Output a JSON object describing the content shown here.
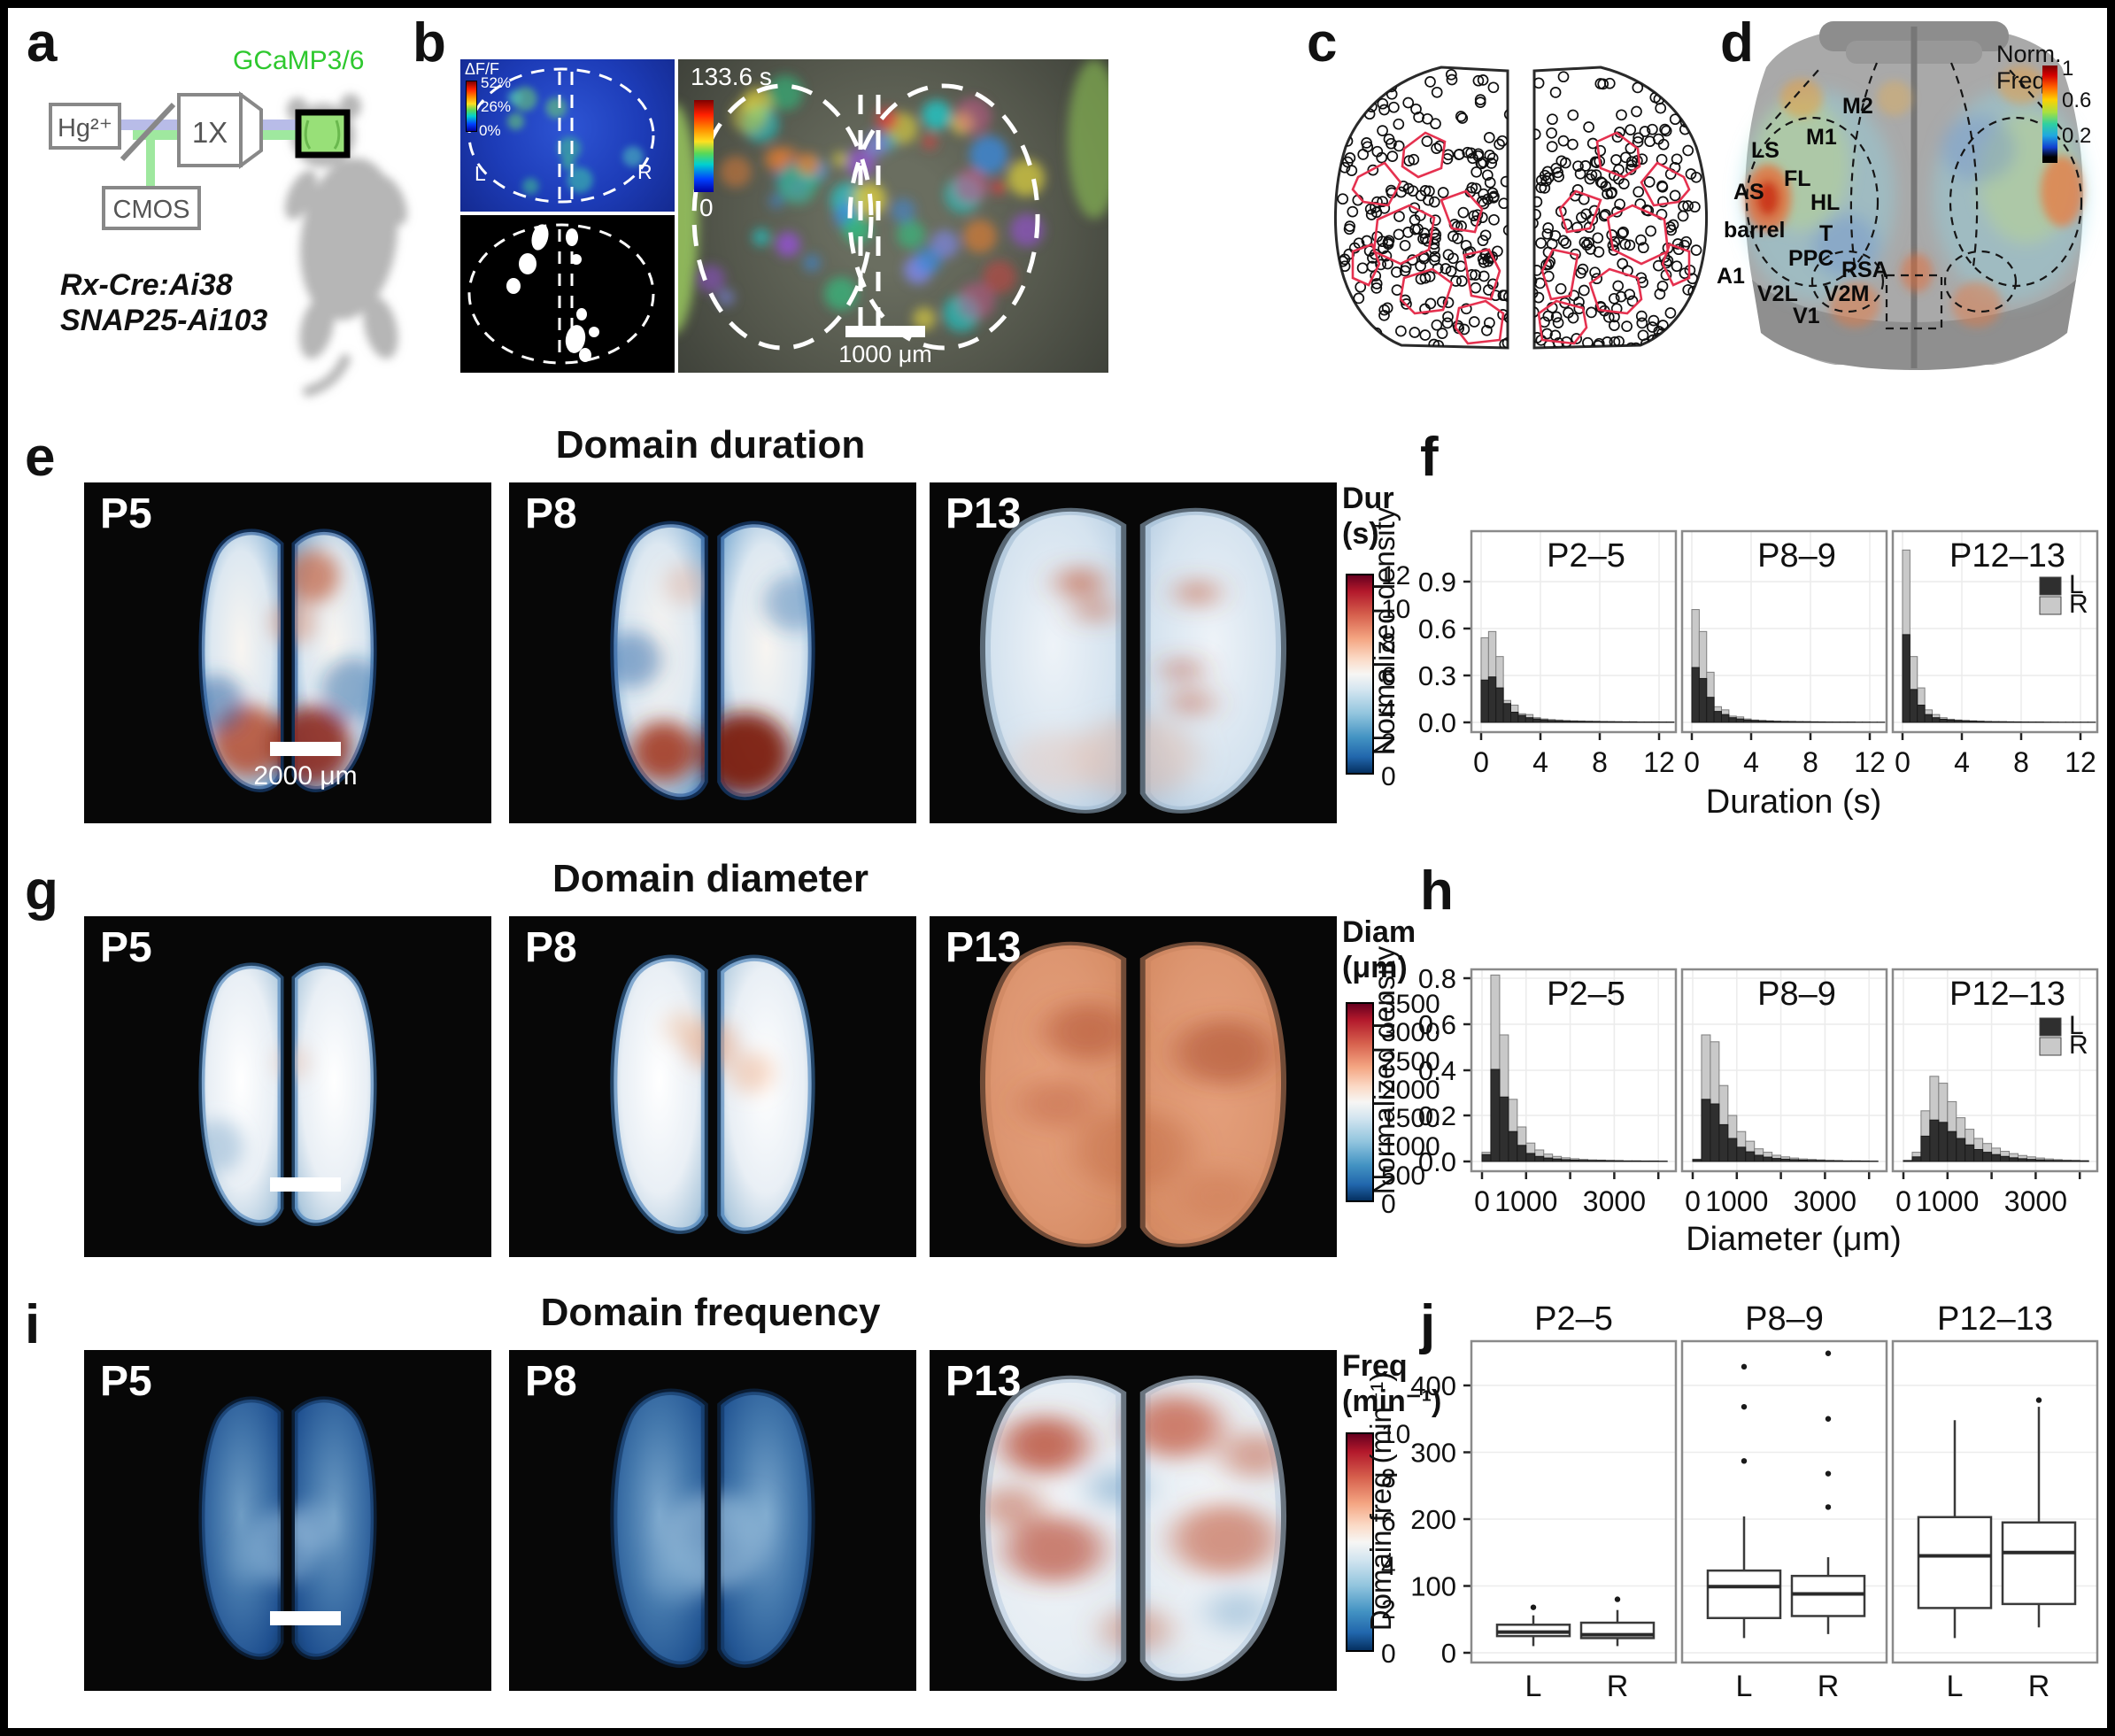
{
  "panel_labels": {
    "a": "a",
    "b": "b",
    "c": "c",
    "d": "d",
    "e": "e",
    "f": "f",
    "g": "g",
    "h": "h",
    "i": "i",
    "j": "j"
  },
  "panel_a": {
    "reporter_label": "GCaMP3/6",
    "lamp": "Hg²⁺",
    "objective": "1X",
    "camera": "CMOS",
    "mouse_line_1": "Rx-Cre:Ai38",
    "mouse_line_2": "SNAP25-Ai103"
  },
  "panel_b": {
    "dff_title": "ΔF/F",
    "dff_ticks": [
      "52%",
      "26%",
      "0%"
    ],
    "left": "L",
    "right": "R",
    "time_max": "133.6 s",
    "time_min": "0",
    "scalebar": "1000 μm"
  },
  "panel_d": {
    "colorbar_title_line1": "Norm.",
    "colorbar_title_line2": "Freq.",
    "colorbar_ticks": [
      "1",
      "0.6",
      "0.2"
    ],
    "regions": [
      "M2",
      "M1",
      "LS",
      "FL",
      "AS",
      "HL",
      "barrel",
      "T",
      "PPC",
      "RSA",
      "A1",
      "V2L",
      "V2M",
      "V1"
    ]
  },
  "section_e": {
    "title": "Domain duration",
    "maps": [
      "P5",
      "P8",
      "P13"
    ],
    "scalebar": "2000 μm",
    "colorbar_title_line1": "Dur",
    "colorbar_title_line2": "(s)",
    "colorbar_ticks": [
      "12",
      "10",
      "8",
      "6",
      "4",
      "2",
      "0"
    ]
  },
  "section_g": {
    "title": "Domain diameter",
    "maps": [
      "P5",
      "P8",
      "P13"
    ],
    "colorbar_title_line1": "Diam",
    "colorbar_title_line2": "(μm)",
    "colorbar_ticks": [
      "3500",
      "3000",
      "2500",
      "2000",
      "1500",
      "1000",
      "500",
      "0"
    ]
  },
  "section_i": {
    "title": "Domain frequency",
    "maps": [
      "P5",
      "P8",
      "P13"
    ],
    "colorbar_title_line1": "Freq",
    "colorbar_title_line2": "(min⁻¹)",
    "colorbar_ticks": [
      "10",
      "8",
      "6",
      "4",
      "2",
      "0"
    ]
  },
  "chart_data": [
    {
      "id": "duration_hist",
      "type": "histogram",
      "bin_width": 0.5,
      "bin_start": 0,
      "ylabel": "Normalized density",
      "xlabel": "Duration (s)",
      "yticks": [
        "0.9",
        "0.6",
        "0.3",
        "0.0"
      ],
      "xticks": [
        0,
        4,
        8,
        12
      ],
      "xtick_labels": [
        "0",
        "4",
        "8",
        "12"
      ],
      "xlim": [
        0,
        13
      ],
      "ylim": [
        0,
        1.22
      ],
      "legend": {
        "entries": [
          "L",
          "R"
        ],
        "colors": {
          "L": "#2f2f2f",
          "R": "#c9c9c9"
        }
      },
      "panels": [
        {
          "title": "P2–5",
          "series": [
            {
              "name": "R",
              "values": [
                0.54,
                0.58,
                0.42,
                0.14,
                0.11,
                0.055,
                0.05,
                0.03,
                0.022,
                0.018,
                0.015,
                0.012,
                0.01,
                0.009,
                0.008,
                0.007,
                0.006,
                0.005,
                0.005,
                0.004,
                0.004,
                0.003,
                0.003,
                0.003,
                0.002,
                0.002
              ]
            },
            {
              "name": "L",
              "values": [
                0.27,
                0.29,
                0.22,
                0.12,
                0.065,
                0.045,
                0.03,
                0.022,
                0.016,
                0.012,
                0.01,
                0.008,
                0.007,
                0.006,
                0.005,
                0.005,
                0.004,
                0.004,
                0.003,
                0.003,
                0.003,
                0.002,
                0.002,
                0.002,
                0.002,
                0.002
              ]
            }
          ]
        },
        {
          "title": "P8–9",
          "series": [
            {
              "name": "R",
              "values": [
                0.72,
                0.58,
                0.32,
                0.1,
                0.08,
                0.04,
                0.035,
                0.022,
                0.015,
                0.012,
                0.01,
                0.008,
                0.007,
                0.006,
                0.005,
                0.004,
                0.004,
                0.003,
                0.003,
                0.002,
                0.002,
                0.002,
                0.002,
                0.002,
                0.001,
                0.001
              ]
            },
            {
              "name": "L",
              "values": [
                0.35,
                0.28,
                0.16,
                0.07,
                0.05,
                0.03,
                0.022,
                0.015,
                0.012,
                0.01,
                0.008,
                0.006,
                0.005,
                0.005,
                0.004,
                0.004,
                0.003,
                0.003,
                0.002,
                0.002,
                0.002,
                0.002,
                0.001,
                0.001,
                0.001,
                0.001
              ]
            }
          ]
        },
        {
          "title": "P12–13",
          "series": [
            {
              "name": "R",
              "values": [
                1.1,
                0.42,
                0.22,
                0.08,
                0.05,
                0.03,
                0.02,
                0.015,
                0.012,
                0.01,
                0.008,
                0.006,
                0.005,
                0.004,
                0.004,
                0.003,
                0.003,
                0.002,
                0.002,
                0.002,
                0.002,
                0.001,
                0.001,
                0.001,
                0.001,
                0.001
              ]
            },
            {
              "name": "L",
              "values": [
                0.56,
                0.21,
                0.11,
                0.05,
                0.03,
                0.02,
                0.015,
                0.012,
                0.01,
                0.008,
                0.006,
                0.005,
                0.004,
                0.004,
                0.003,
                0.003,
                0.002,
                0.002,
                0.002,
                0.001,
                0.001,
                0.001,
                0.001,
                0.001,
                0.001,
                0.001
              ]
            }
          ]
        }
      ]
    },
    {
      "id": "diameter_hist",
      "type": "histogram",
      "bin_width": 200,
      "bin_start": 0,
      "ylabel": "Normalized density",
      "xlabel": "Diameter (μm)",
      "yticks": [
        "0.8",
        "0.6",
        "0.4",
        "0.2",
        "0.0"
      ],
      "xticks": [
        0,
        1000,
        2000,
        3000,
        4000
      ],
      "xtick_labels": [
        "0",
        "1000",
        "",
        "3000",
        ""
      ],
      "xlim": [
        0,
        4200
      ],
      "ylim": [
        0,
        0.85
      ],
      "legend": {
        "entries": [
          "L",
          "R"
        ],
        "colors": {
          "L": "#2f2f2f",
          "R": "#c9c9c9"
        }
      },
      "panels": [
        {
          "title": "P2–5",
          "series": [
            {
              "name": "R",
              "values": [
                0.04,
                0.81,
                0.55,
                0.27,
                0.15,
                0.08,
                0.05,
                0.032,
                0.022,
                0.016,
                0.012,
                0.009,
                0.007,
                0.006,
                0.005,
                0.004,
                0.003,
                0.003,
                0.002,
                0.002,
                0.002
              ]
            },
            {
              "name": "L",
              "values": [
                0.03,
                0.4,
                0.28,
                0.13,
                0.07,
                0.035,
                0.022,
                0.015,
                0.011,
                0.008,
                0.006,
                0.005,
                0.004,
                0.004,
                0.003,
                0.003,
                0.002,
                0.002,
                0.002,
                0.002,
                0.001
              ]
            }
          ]
        },
        {
          "title": "P8–9",
          "series": [
            {
              "name": "R",
              "values": [
                0.01,
                0.55,
                0.52,
                0.33,
                0.2,
                0.13,
                0.088,
                0.055,
                0.04,
                0.027,
                0.02,
                0.015,
                0.011,
                0.009,
                0.007,
                0.005,
                0.004,
                0.003,
                0.003,
                0.002,
                0.002
              ]
            },
            {
              "name": "L",
              "values": [
                0.008,
                0.27,
                0.25,
                0.16,
                0.1,
                0.062,
                0.042,
                0.027,
                0.019,
                0.013,
                0.01,
                0.008,
                0.006,
                0.005,
                0.004,
                0.003,
                0.003,
                0.002,
                0.002,
                0.002,
                0.001
              ]
            }
          ]
        },
        {
          "title": "P12–13",
          "series": [
            {
              "name": "R",
              "values": [
                0.005,
                0.04,
                0.22,
                0.37,
                0.34,
                0.26,
                0.19,
                0.14,
                0.1,
                0.078,
                0.058,
                0.044,
                0.034,
                0.026,
                0.02,
                0.015,
                0.011,
                0.008,
                0.006,
                0.005,
                0.004
              ]
            },
            {
              "name": "L",
              "values": [
                0.003,
                0.02,
                0.11,
                0.18,
                0.17,
                0.13,
                0.1,
                0.072,
                0.052,
                0.04,
                0.03,
                0.022,
                0.016,
                0.012,
                0.009,
                0.007,
                0.005,
                0.004,
                0.003,
                0.003,
                0.002
              ]
            }
          ]
        }
      ]
    },
    {
      "id": "freq_box",
      "type": "boxplot",
      "ylabel": "Domain freq (min⁻¹)",
      "yticks": [
        "400",
        "300",
        "200",
        "100",
        "0"
      ],
      "categories": [
        "L",
        "R"
      ],
      "panels": [
        {
          "title": "P2–5",
          "boxes": [
            {
              "cat": "L",
              "whislo": 10,
              "q1": 25,
              "med": 31,
              "q3": 42,
              "whishi": 56,
              "outliers": [
                68
              ]
            },
            {
              "cat": "R",
              "whislo": 10,
              "q1": 22,
              "med": 27,
              "q3": 45,
              "whishi": 64,
              "outliers": [
                80
              ]
            }
          ]
        },
        {
          "title": "P8–9",
          "boxes": [
            {
              "cat": "L",
              "whislo": 22,
              "q1": 52,
              "med": 99,
              "q3": 123,
              "whishi": 204,
              "outliers": [
                287,
                368,
                428
              ]
            },
            {
              "cat": "R",
              "whislo": 28,
              "q1": 55,
              "med": 88,
              "q3": 115,
              "whishi": 143,
              "outliers": [
                218,
                268,
                350,
                448
              ]
            }
          ]
        },
        {
          "title": "P12–13",
          "boxes": [
            {
              "cat": "L",
              "whislo": 22,
              "q1": 67,
              "med": 145,
              "q3": 203,
              "whishi": 348,
              "outliers": []
            },
            {
              "cat": "R",
              "whislo": 38,
              "q1": 73,
              "med": 150,
              "q3": 195,
              "whishi": 368,
              "outliers": [
                378
              ]
            }
          ]
        }
      ]
    }
  ]
}
